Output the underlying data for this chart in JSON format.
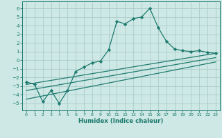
{
  "xlabel": "Humidex (Indice chaleur)",
  "background_color": "#cde8e5",
  "grid_color": "#aaccca",
  "line_color": "#1e7a6e",
  "xlim": [
    -0.5,
    23.5
  ],
  "ylim": [
    -5.8,
    6.8
  ],
  "xticks": [
    0,
    1,
    2,
    3,
    4,
    5,
    6,
    7,
    8,
    9,
    10,
    11,
    12,
    13,
    14,
    15,
    16,
    17,
    18,
    19,
    20,
    21,
    22,
    23
  ],
  "yticks": [
    -5,
    -4,
    -3,
    -2,
    -1,
    0,
    1,
    2,
    3,
    4,
    5,
    6
  ],
  "main_x": [
    0,
    1,
    2,
    3,
    4,
    5,
    6,
    7,
    8,
    9,
    10,
    11,
    12,
    13,
    14,
    15,
    16,
    17,
    18,
    19,
    20,
    21,
    22,
    23
  ],
  "main_y": [
    -2.5,
    -2.8,
    -4.8,
    -3.5,
    -5.0,
    -3.5,
    -1.3,
    -0.8,
    -0.3,
    -0.1,
    1.2,
    4.5,
    4.2,
    4.8,
    5.0,
    6.0,
    3.8,
    2.2,
    1.3,
    1.1,
    1.0,
    1.1,
    0.9,
    0.8
  ],
  "line1_x": [
    0,
    23
  ],
  "line1_y": [
    -2.8,
    0.8
  ],
  "line2_x": [
    0,
    23
  ],
  "line2_y": [
    -3.5,
    0.3
  ],
  "line3_x": [
    0,
    23
  ],
  "line3_y": [
    -4.5,
    -0.2
  ]
}
